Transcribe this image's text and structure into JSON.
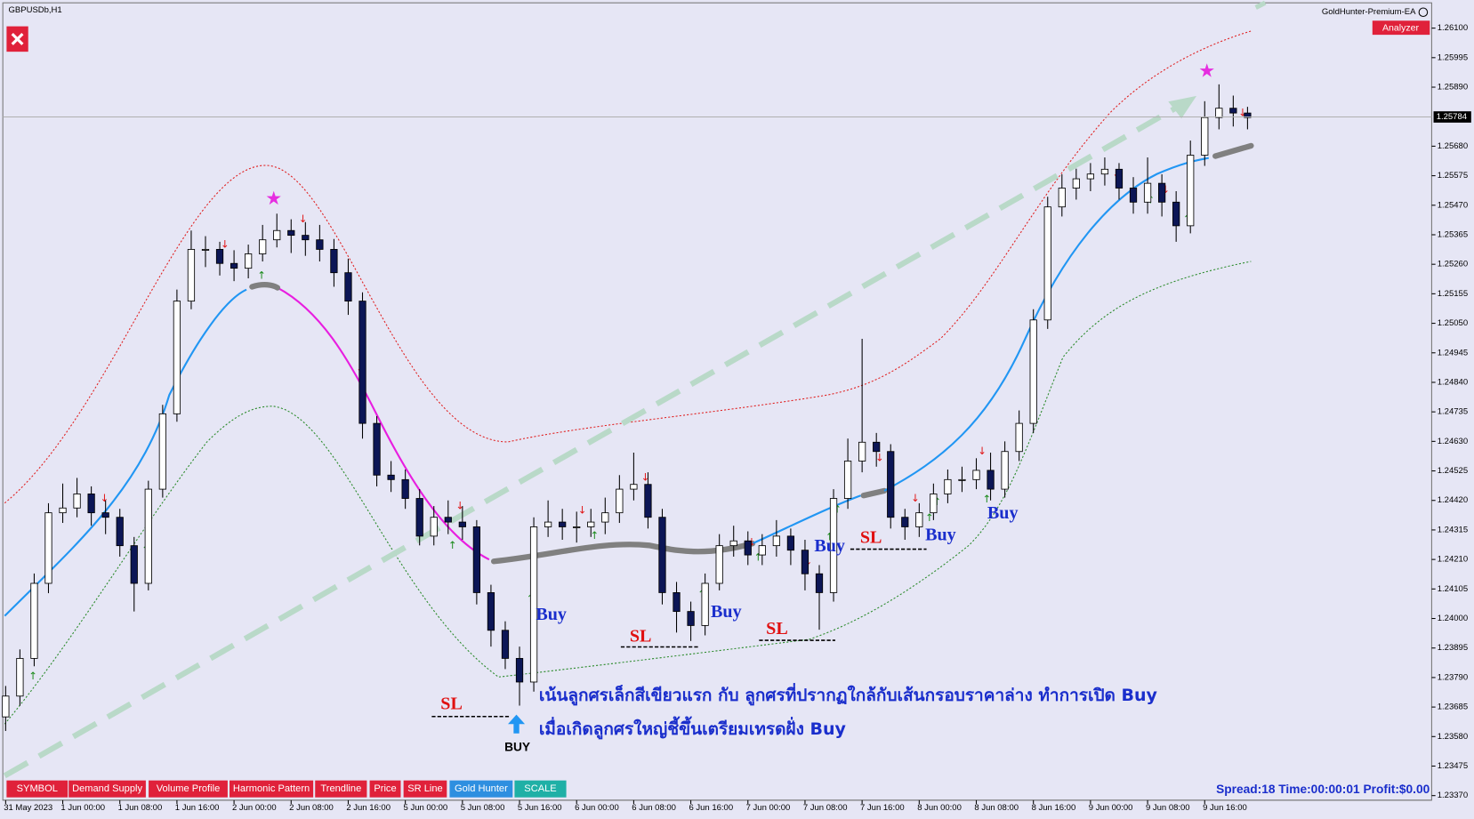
{
  "header": {
    "symbol": "GBPUSDb,H1",
    "ea_name": "GoldHunter-Premium-EA",
    "analyzer": "Analyzer"
  },
  "chart_data": {
    "type": "candlestick",
    "categories": [
      "31 May 2023",
      null,
      null,
      null,
      "1 Jun 00:00",
      null,
      null,
      null,
      "1 Jun 08:00",
      null,
      null,
      null,
      "1 Jun 16:00",
      null,
      null,
      null,
      "2 Jun 00:00",
      null,
      null,
      null,
      "2 Jun 08:00",
      null,
      null,
      null,
      "2 Jun 16:00",
      null,
      null,
      null,
      "5 Jun 00:00",
      null,
      null,
      null,
      "5 Jun 08:00",
      null,
      null,
      null,
      "5 Jun 16:00",
      null,
      null,
      null,
      "6 Jun 00:00",
      null,
      null,
      null,
      "6 Jun 08:00",
      null,
      null,
      null,
      "6 Jun 16:00",
      null,
      null,
      null,
      "7 Jun 00:00",
      null,
      null,
      null,
      "7 Jun 08:00",
      null,
      null,
      null,
      "7 Jun 16:00",
      null,
      null,
      null,
      "8 Jun 00:00",
      null,
      null,
      null,
      "8 Jun 08:00",
      null,
      null,
      null,
      "8 Jun 16:00",
      null,
      null,
      null,
      "9 Jun 00:00",
      null,
      null,
      null,
      "9 Jun 08:00",
      null,
      null,
      null,
      "9 Jun 16:00",
      null,
      null,
      null
    ],
    "open": [
      1.2365,
      1.23724,
      1.23858,
      1.24125,
      1.24376,
      1.24393,
      1.24443,
      1.24376,
      1.2436,
      1.24259,
      1.24125,
      1.2446,
      1.24728,
      1.25129,
      1.25313,
      1.25313,
      1.25263,
      1.25246,
      1.25297,
      1.25347,
      1.2538,
      1.25363,
      1.25347,
      1.25313,
      1.2523,
      1.25129,
      1.24694,
      1.2451,
      1.24494,
      1.24427,
      1.24293,
      1.2436,
      1.24343,
      1.24326,
      1.24092,
      1.23958,
      1.23858,
      1.23774,
      1.24326,
      1.24343,
      1.24326,
      1.24326,
      1.24343,
      1.24376,
      1.2446,
      1.24477,
      1.2436,
      1.24092,
      1.24025,
      1.23975,
      1.24125,
      1.24259,
      1.24276,
      1.24226,
      1.24259,
      1.24293,
      1.24243,
      1.24159,
      1.24092,
      1.24427,
      1.2456,
      1.24627,
      1.24594,
      1.2436,
      1.24326,
      1.24376,
      1.24443,
      1.24494,
      1.24494,
      1.24527,
      1.2446,
      1.24594,
      1.24694,
      1.25062,
      1.25464,
      1.25531,
      1.25564,
      1.25581,
      1.25598,
      1.25531,
      1.25481,
      1.25548,
      1.25481,
      1.25397,
      1.25648,
      1.25782,
      1.25815,
      1.25798
    ],
    "high": [
      1.2376,
      1.2389,
      1.2416,
      1.2441,
      1.2448,
      1.245,
      1.2447,
      1.2442,
      1.2439,
      1.2429,
      1.2449,
      1.2476,
      1.2517,
      1.2538,
      1.2536,
      1.2534,
      1.2531,
      1.2533,
      1.254,
      1.2544,
      1.2542,
      1.2541,
      1.254,
      1.2535,
      1.2528,
      1.2516,
      1.2472,
      1.2456,
      1.2453,
      1.2446,
      1.244,
      1.2442,
      1.244,
      1.2435,
      1.2412,
      1.2399,
      1.239,
      1.2436,
      1.2442,
      1.2439,
      1.2438,
      1.2439,
      1.2443,
      1.2451,
      1.2459,
      1.2452,
      1.2439,
      1.2413,
      1.2406,
      1.2416,
      1.243,
      1.2433,
      1.2431,
      1.243,
      1.2435,
      1.2432,
      1.2428,
      1.2419,
      1.2446,
      1.2464,
      1.24995,
      1.2466,
      1.2462,
      1.2439,
      1.2441,
      1.2448,
      1.2453,
      1.2454,
      1.2457,
      1.2459,
      1.2463,
      1.2474,
      1.251,
      1.255,
      1.2558,
      1.256,
      1.2562,
      1.2564,
      1.2562,
      1.2557,
      1.2564,
      1.2558,
      1.2552,
      1.257,
      1.2584,
      1.259,
      1.2586,
      1.2582
    ],
    "low": [
      1.236,
      1.2369,
      1.2383,
      1.2409,
      1.2434,
      1.2436,
      1.2433,
      1.243,
      1.2422,
      1.24025,
      1.241,
      1.2443,
      1.247,
      1.251,
      1.2525,
      1.2522,
      1.252,
      1.2521,
      1.2527,
      1.2532,
      1.253,
      1.2529,
      1.2527,
      1.2518,
      1.2508,
      1.2464,
      1.2447,
      1.2445,
      1.2439,
      1.2426,
      1.2426,
      1.243,
      1.2428,
      1.2405,
      1.239,
      1.2382,
      1.2369,
      1.2374,
      1.2429,
      1.2428,
      1.2427,
      1.2429,
      1.243,
      1.2434,
      1.2442,
      1.2432,
      1.2405,
      1.2395,
      1.2392,
      1.2394,
      1.241,
      1.2422,
      1.2419,
      1.2419,
      1.2422,
      1.2419,
      1.241,
      1.2396,
      1.2406,
      1.2439,
      1.2452,
      1.2454,
      1.2432,
      1.2428,
      1.2429,
      1.2435,
      1.2441,
      1.2445,
      1.2446,
      1.2442,
      1.2443,
      1.2456,
      1.2466,
      1.2503,
      1.2543,
      1.2549,
      1.2552,
      1.2554,
      1.2549,
      1.2544,
      1.2544,
      1.2543,
      1.2534,
      1.2537,
      1.2561,
      1.2574,
      1.2575,
      1.2574
    ],
    "close": [
      1.23724,
      1.23858,
      1.24125,
      1.24376,
      1.24393,
      1.24443,
      1.24376,
      1.2436,
      1.24259,
      1.24125,
      1.2446,
      1.24728,
      1.25129,
      1.25313,
      1.25313,
      1.25263,
      1.25246,
      1.25297,
      1.25347,
      1.2538,
      1.25363,
      1.25347,
      1.25313,
      1.2523,
      1.25129,
      1.24694,
      1.2451,
      1.24494,
      1.24427,
      1.24293,
      1.2436,
      1.24343,
      1.24326,
      1.24092,
      1.23958,
      1.23858,
      1.23774,
      1.24326,
      1.24343,
      1.24326,
      1.24326,
      1.24343,
      1.24376,
      1.2446,
      1.24477,
      1.2436,
      1.24092,
      1.24025,
      1.23975,
      1.24125,
      1.24259,
      1.24276,
      1.24226,
      1.24259,
      1.24293,
      1.24243,
      1.24159,
      1.24092,
      1.24427,
      1.2456,
      1.24627,
      1.24594,
      1.2436,
      1.24326,
      1.24376,
      1.24443,
      1.24494,
      1.24494,
      1.24527,
      1.2446,
      1.24594,
      1.24694,
      1.25062,
      1.25464,
      1.25531,
      1.25564,
      1.25581,
      1.25598,
      1.25531,
      1.25481,
      1.25548,
      1.25481,
      1.25397,
      1.25648,
      1.25782,
      1.25815,
      1.25798,
      1.25782
    ],
    "ylim": [
      1.23357,
      1.2619
    ],
    "yticks": [
      {
        "value": 1.261,
        "label": "1.26100"
      },
      {
        "value": 1.25995,
        "label": "1.25995"
      },
      {
        "value": 1.2589,
        "label": "1.25890"
      },
      {
        "value": 1.2568,
        "label": "1.25680"
      },
      {
        "value": 1.25575,
        "label": "1.25575"
      },
      {
        "value": 1.2547,
        "label": "1.25470"
      },
      {
        "value": 1.25365,
        "label": "1.25365"
      },
      {
        "value": 1.2526,
        "label": "1.25260"
      },
      {
        "value": 1.25155,
        "label": "1.25155"
      },
      {
        "value": 1.2505,
        "label": "1.25050"
      },
      {
        "value": 1.24945,
        "label": "1.24945"
      },
      {
        "value": 1.2484,
        "label": "1.24840"
      },
      {
        "value": 1.24735,
        "label": "1.24735"
      },
      {
        "value": 1.2463,
        "label": "1.24630"
      },
      {
        "value": 1.24525,
        "label": "1.24525"
      },
      {
        "value": 1.2442,
        "label": "1.24420"
      },
      {
        "value": 1.24315,
        "label": "1.24315"
      },
      {
        "value": 1.2421,
        "label": "1.24210"
      },
      {
        "value": 1.24105,
        "label": "1.24105"
      },
      {
        "value": 1.24,
        "label": "1.24000"
      },
      {
        "value": 1.23895,
        "label": "1.23895"
      },
      {
        "value": 1.2379,
        "label": "1.23790"
      },
      {
        "value": 1.23685,
        "label": "1.23685"
      },
      {
        "value": 1.2358,
        "label": "1.23580"
      },
      {
        "value": 1.23475,
        "label": "1.23475"
      },
      {
        "value": 1.2337,
        "label": "1.23370"
      }
    ],
    "current_price": 1.25784,
    "up_color": "#ffffff",
    "down_color": "#0c1656"
  },
  "annotations": {
    "buy_labels": [
      "Buy",
      "Buy",
      "Buy",
      "Buy",
      "Buy"
    ],
    "sl_labels": [
      "SL",
      "SL",
      "SL",
      "SL"
    ],
    "buy_arrow": "BUY",
    "notes": [
      "เน้นลูกศรเล็กสีเขียวแรก กับ ลูกศรที่ปรากฏใกล้กับเส้นกรอบราคาล่าง ทำการเปิด Buy",
      "เมื่อเกิดลูกศรใหญ่ชี้ขึ้นเตรียมเทรดฝั่ง Buy"
    ]
  },
  "toolbar": {
    "buttons": [
      "SYMBOL",
      "Demand Supply",
      "Volume Profile",
      "Harmonic Pattern",
      "Trendline",
      "Price",
      "SR Line",
      "Gold Hunter",
      "SCALE"
    ]
  },
  "status": "Spread:18 Time:00:00:01 Profit:$0.00"
}
